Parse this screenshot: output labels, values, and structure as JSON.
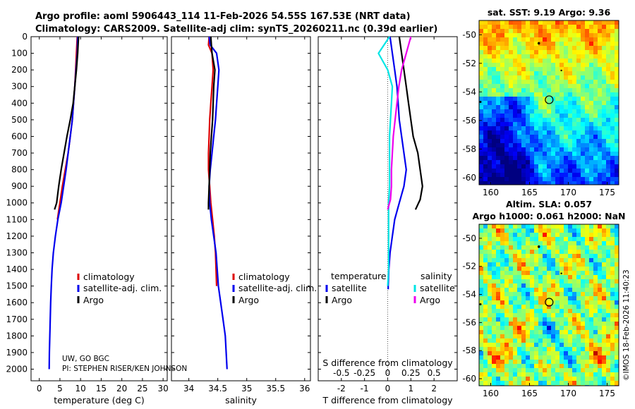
{
  "title": {
    "line1": "Argo profile: aoml 5906443_114 11-Feb-2026 54.55S 167.53E (NRT data)",
    "line2": "Climatology: CARS2009. Satellite-adj clim: synTS_20260211.nc (0.39d earlier)"
  },
  "credit": {
    "line1": "UW, GO BGC",
    "line2": "PI: STEPHEN RISER/KEN JOHNSON"
  },
  "watermark": "©IMOS 18-Feb-2026 11:40:23",
  "colors": {
    "climatology": "#dd0000",
    "satellite": "#0000ee",
    "argo": "#000000",
    "sat_diff_s": "#00e5e5",
    "argo_diff_s": "#ee00ee"
  },
  "chart_data": [
    {
      "type": "line",
      "id": "temperature-profile",
      "xlabel": "temperature (deg C)",
      "ylabel": "",
      "xlim": [
        -2,
        31
      ],
      "ylim": [
        2070,
        0
      ],
      "xticks": [
        0,
        5,
        10,
        15,
        20,
        25,
        30
      ],
      "yticks": [
        0,
        100,
        200,
        300,
        400,
        500,
        600,
        700,
        800,
        900,
        1000,
        1100,
        1200,
        1300,
        1400,
        1500,
        1600,
        1700,
        1800,
        1900,
        2000
      ],
      "legend": [
        "climatology",
        "satellite-adj. clim.",
        "Argo"
      ],
      "legend_position": "lower-right",
      "series": [
        {
          "name": "climatology",
          "color": "#dd0000",
          "x": [
            9.2,
            9.0,
            8.8,
            8.6,
            8.3,
            8.0,
            7.5,
            7.0,
            6.3,
            5.6,
            5.0,
            4.4
          ],
          "y": [
            0,
            100,
            200,
            300,
            400,
            500,
            600,
            700,
            800,
            900,
            1000,
            1100
          ]
        },
        {
          "name": "satellite-adj. clim.",
          "color": "#0000ee",
          "x": [
            9.3,
            9.2,
            8.9,
            8.6,
            8.3,
            8.0,
            7.5,
            7.0,
            6.5,
            5.9,
            5.3,
            4.5,
            3.9,
            3.4,
            3.1,
            2.9,
            2.75,
            2.65,
            2.55,
            2.45,
            2.4
          ],
          "y": [
            0,
            100,
            200,
            300,
            400,
            500,
            600,
            700,
            800,
            900,
            1000,
            1100,
            1200,
            1300,
            1400,
            1500,
            1600,
            1700,
            1800,
            1900,
            2000
          ]
        },
        {
          "name": "Argo",
          "color": "#000000",
          "x": [
            9.5,
            9.4,
            9.3,
            9.0,
            8.6,
            8.2,
            7.5,
            6.7,
            6.0,
            5.3,
            4.7,
            4.2,
            3.7
          ],
          "y": [
            0,
            50,
            100,
            200,
            300,
            400,
            500,
            600,
            700,
            800,
            900,
            1000,
            1040
          ]
        }
      ]
    },
    {
      "type": "line",
      "id": "salinity-profile",
      "xlabel": "salinity",
      "xlim": [
        33.7,
        36.1
      ],
      "ylim": [
        2070,
        0
      ],
      "xticks": [
        34,
        34.5,
        35,
        35.5,
        36
      ],
      "legend": [
        "climatology",
        "satellite-adj. clim.",
        "Argo"
      ],
      "legend_position": "lower-right",
      "series": [
        {
          "name": "climatology",
          "color": "#dd0000",
          "x": [
            34.35,
            34.34,
            34.4,
            34.42,
            34.4,
            34.38,
            34.36,
            34.35,
            34.34,
            34.34,
            34.36,
            34.38,
            34.41,
            34.44,
            34.46,
            34.48
          ],
          "y": [
            0,
            50,
            100,
            200,
            300,
            400,
            500,
            600,
            700,
            800,
            900,
            1000,
            1100,
            1200,
            1300,
            1500
          ]
        },
        {
          "name": "satellite-adj. clim.",
          "color": "#0000ee",
          "x": [
            34.35,
            34.37,
            34.48,
            34.52,
            34.5,
            34.48,
            34.46,
            34.43,
            34.4,
            34.37,
            34.35,
            34.36,
            34.39,
            34.43,
            34.47,
            34.51,
            34.55,
            34.59,
            34.63,
            34.66
          ],
          "y": [
            0,
            50,
            100,
            200,
            300,
            400,
            500,
            600,
            700,
            800,
            900,
            1000,
            1100,
            1200,
            1300,
            1500,
            1600,
            1700,
            1800,
            2000
          ]
        },
        {
          "name": "Argo",
          "color": "#000000",
          "x": [
            34.38,
            34.39,
            34.4,
            34.45,
            34.43,
            34.42,
            34.41,
            34.39,
            34.37,
            34.36,
            34.35,
            34.34,
            34.34
          ],
          "y": [
            0,
            50,
            100,
            200,
            300,
            400,
            500,
            600,
            700,
            800,
            900,
            1000,
            1040
          ]
        }
      ]
    },
    {
      "type": "line",
      "id": "difference-profile",
      "xlabel": "T difference from climatology",
      "top_label": "S difference from climatology",
      "xlim": [
        -3,
        3
      ],
      "ylim": [
        2070,
        0
      ],
      "xticks": [
        -2,
        -1,
        0,
        1,
        2
      ],
      "top_ticks": [
        -0.5,
        -0.25,
        0,
        0.25,
        0.5
      ],
      "legend_t_title": "temperature",
      "legend_s_title": "salinity",
      "legend": [
        "satellite",
        "Argo",
        "satellite",
        "Argo"
      ],
      "series": [
        {
          "name": "T satellite",
          "color": "#0000ee",
          "x": [
            0.1,
            0.2,
            0.3,
            0.4,
            0.45,
            0.5,
            0.6,
            0.7,
            0.8,
            0.7,
            0.5,
            0.3,
            0.2,
            0.1,
            0.05,
            0.02,
            0.02
          ],
          "y": [
            0,
            100,
            200,
            300,
            400,
            500,
            600,
            700,
            800,
            900,
            1000,
            1100,
            1200,
            1300,
            1400,
            1500,
            1520
          ]
        },
        {
          "name": "T Argo",
          "color": "#000000",
          "x": [
            0.5,
            0.6,
            0.7,
            0.8,
            0.9,
            1.0,
            1.1,
            1.3,
            1.4,
            1.5,
            1.4,
            1.2
          ],
          "y": [
            0,
            100,
            200,
            300,
            400,
            500,
            600,
            700,
            800,
            900,
            980,
            1040
          ]
        },
        {
          "name": "S satellite",
          "color": "#00e5e5",
          "x": [
            0.02,
            -0.1,
            0.0,
            0.05,
            0.04,
            0.03,
            0.02,
            0.02,
            0.02,
            0.02,
            0.01,
            0.01,
            0.01,
            0.01,
            0.01,
            0.0
          ],
          "y": [
            0,
            100,
            200,
            300,
            400,
            500,
            600,
            700,
            800,
            900,
            1000,
            1100,
            1200,
            1300,
            1400,
            1500
          ]
        },
        {
          "name": "S Argo",
          "color": "#ee00ee",
          "x": [
            0.25,
            0.2,
            0.15,
            0.12,
            0.1,
            0.08,
            0.06,
            0.05,
            0.04,
            0.04,
            0.03,
            0.0
          ],
          "y": [
            0,
            100,
            200,
            300,
            400,
            500,
            600,
            700,
            800,
            900,
            980,
            1040
          ]
        }
      ]
    },
    {
      "type": "heatmap",
      "id": "sst-map",
      "title": "sat. SST: 9.19 Argo: 9.36",
      "xlim": [
        158.5,
        176.5
      ],
      "ylim": [
        -60.5,
        -49
      ],
      "xticks": [
        160,
        165,
        170,
        175
      ],
      "yticks": [
        -50,
        -52,
        -54,
        -56,
        -58,
        -60
      ],
      "argo_position": [
        167.53,
        -54.55
      ]
    },
    {
      "type": "heatmap",
      "id": "sla-map",
      "title": "Altim. SLA: 0.057",
      "subtitle": "Argo h1000: 0.061 h2000: NaN",
      "xlim": [
        158.5,
        176.5
      ],
      "ylim": [
        -60.5,
        -49
      ],
      "xticks": [
        160,
        165,
        170,
        175
      ],
      "yticks": [
        -50,
        -52,
        -54,
        -56,
        -58,
        -60
      ],
      "argo_position": [
        167.53,
        -54.55
      ]
    }
  ]
}
